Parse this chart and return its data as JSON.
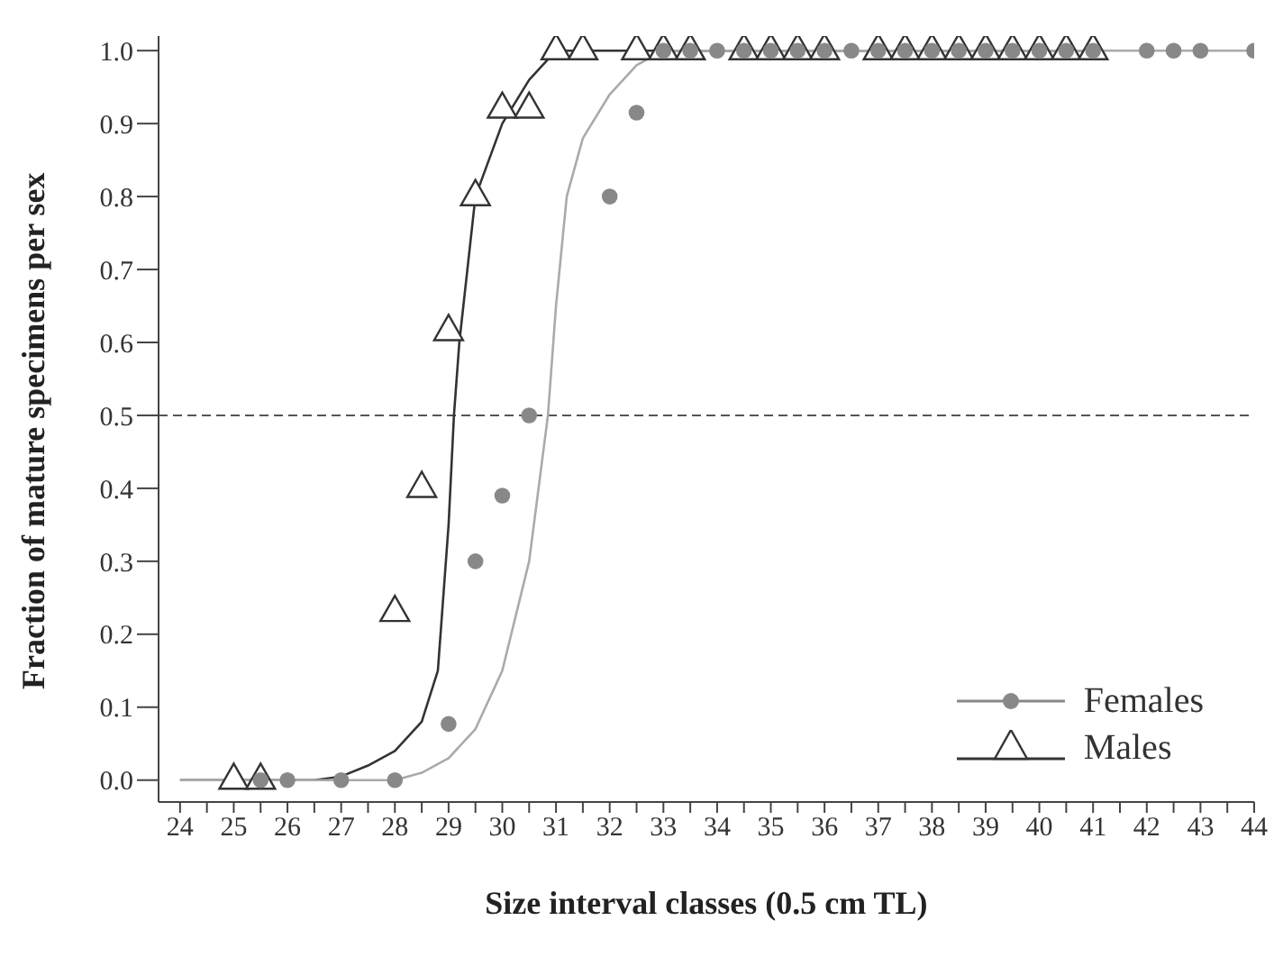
{
  "chart_data": {
    "type": "scatter",
    "xlabel": "Size interval classes (0.5 cm TL)",
    "ylabel": "Fraction of mature specimens per sex",
    "xlim": [
      23.6,
      44
    ],
    "xticks": [
      24,
      {
        "value": 24.5,
        "label": null
      },
      25,
      {
        "value": 25.5,
        "label": null
      },
      26,
      {
        "value": 26.5,
        "label": null
      },
      27,
      {
        "value": 27.5,
        "label": null
      },
      28,
      {
        "value": 28.5,
        "label": null
      },
      29,
      {
        "value": 29.5,
        "label": null
      },
      30,
      {
        "value": 30.5,
        "label": null
      },
      31,
      {
        "value": 31.5,
        "label": null
      },
      32,
      {
        "value": 32.5,
        "label": null
      },
      33,
      {
        "value": 33.5,
        "label": null
      },
      34,
      {
        "value": 34.5,
        "label": null
      },
      35,
      {
        "value": 35.5,
        "label": null
      },
      36,
      {
        "value": 36.5,
        "label": null
      },
      37,
      {
        "value": 37.5,
        "label": null
      },
      38,
      {
        "value": 38.5,
        "label": null
      },
      39,
      {
        "value": 39.5,
        "label": null
      },
      40,
      {
        "value": 40.5,
        "label": null
      },
      41,
      {
        "value": 41.5,
        "label": null
      },
      42,
      {
        "value": 42.5,
        "label": null
      },
      43,
      {
        "value": 43.5,
        "label": null
      },
      44
    ],
    "ylim": [
      -0.03,
      1.02
    ],
    "yticks": [
      {
        "value": 0,
        "label": "0.0"
      },
      {
        "value": 0.1,
        "label": "0.1"
      },
      {
        "value": 0.2,
        "label": "0.2"
      },
      {
        "value": 0.3,
        "label": "0.3"
      },
      {
        "value": 0.4,
        "label": "0.4"
      },
      {
        "value": 0.5,
        "label": "0.5"
      },
      {
        "value": 0.6,
        "label": "0.6"
      },
      {
        "value": 0.7,
        "label": "0.7"
      },
      {
        "value": 0.8,
        "label": "0.8"
      },
      {
        "value": 0.9,
        "label": "0.9"
      },
      {
        "value": 1,
        "label": "1.0"
      }
    ],
    "grid": false,
    "legend": "bottom right",
    "ref_lines": [
      {
        "axis": "y",
        "value": 0.5,
        "color": "#555555",
        "line_style": "dashed"
      }
    ],
    "series": [
      {
        "name": "Females",
        "marker": "circle",
        "color": "#888888",
        "x": [
          25.5,
          26,
          27,
          28,
          29,
          29.5,
          30,
          30.5,
          32,
          32.5,
          33,
          33.5,
          34,
          34.5,
          35,
          35.5,
          36,
          36.5,
          37,
          37.5,
          38,
          38.5,
          39,
          39.5,
          40,
          40.5,
          41,
          42,
          42.5,
          43,
          44
        ],
        "values": [
          0,
          0,
          0,
          0,
          0.077,
          0.3,
          0.39,
          0.5,
          0.8,
          0.915,
          1,
          1,
          1,
          1,
          1,
          1,
          1,
          1,
          1,
          1,
          1,
          1,
          1,
          1,
          1,
          1,
          1,
          1,
          1,
          1,
          1
        ]
      },
      {
        "type": "line",
        "color": "#aaaaaa",
        "x": [
          24,
          28,
          28.5,
          29,
          29.5,
          30,
          30.5,
          30.85,
          31,
          31.2,
          31.5,
          32,
          32.5,
          33,
          44
        ],
        "values": [
          0,
          0,
          0.01,
          0.03,
          0.07,
          0.15,
          0.3,
          0.5,
          0.65,
          0.8,
          0.88,
          0.94,
          0.98,
          1,
          1
        ]
      },
      {
        "name": "Males",
        "marker": "triangle",
        "color": "#333333",
        "x": [
          25,
          25.5,
          28,
          28.5,
          29,
          29.5,
          30,
          30.5,
          31,
          31.5,
          32.5,
          33,
          33.5,
          34.5,
          35,
          35.5,
          36,
          37,
          37.5,
          38,
          38.5,
          39,
          39.5,
          40,
          40.5,
          41
        ],
        "values": [
          0,
          0,
          0.23,
          0.4,
          0.615,
          0.8,
          0.92,
          0.92,
          1,
          1,
          1,
          1,
          1,
          1,
          1,
          1,
          1,
          1,
          1,
          1,
          1,
          1,
          1,
          1,
          1,
          1
        ]
      },
      {
        "type": "line",
        "color": "#333333",
        "x": [
          24,
          26.5,
          27,
          27.5,
          28,
          28.5,
          28.8,
          29,
          29.1,
          29.2,
          29.5,
          30,
          30.5,
          31,
          41
        ],
        "values": [
          0,
          0,
          0.005,
          0.02,
          0.04,
          0.08,
          0.15,
          0.35,
          0.5,
          0.6,
          0.8,
          0.9,
          0.96,
          1,
          1
        ]
      }
    ]
  }
}
